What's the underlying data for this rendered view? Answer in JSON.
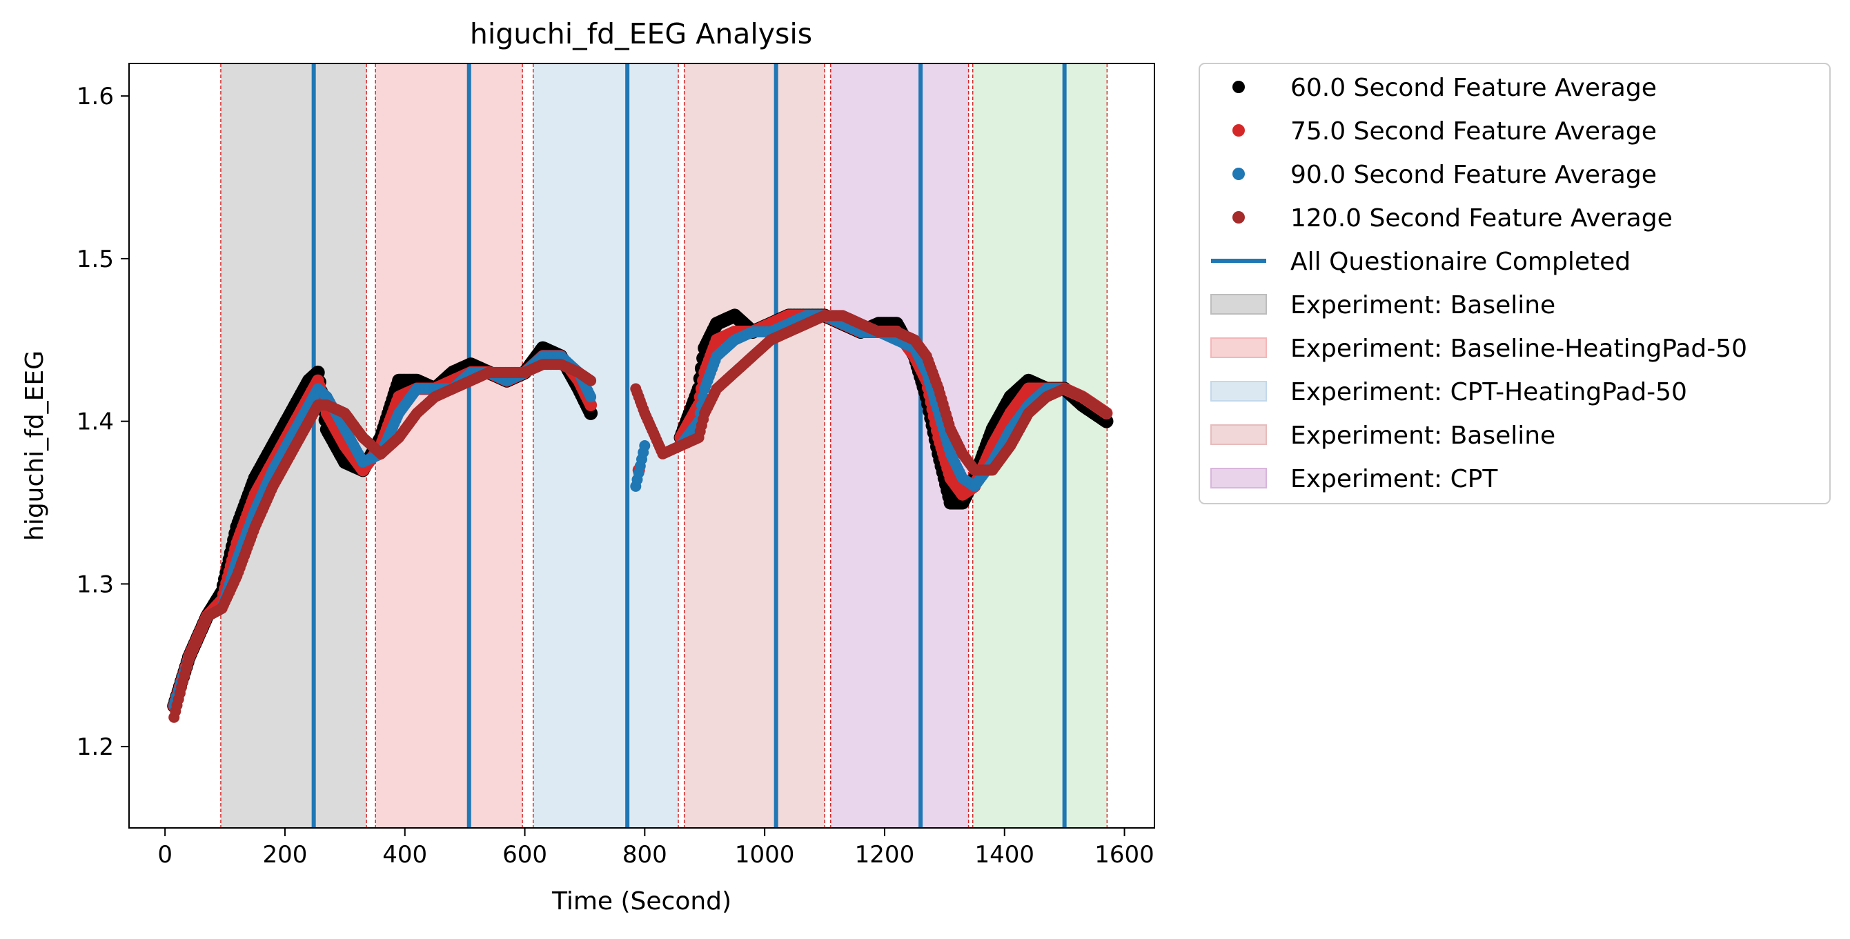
{
  "chart_data": {
    "type": "scatter",
    "title": "higuchi_fd_EEG Analysis",
    "xlabel": "Time (Second)",
    "ylabel": "higuchi_fd_EEG",
    "xlim": [
      -60,
      1650
    ],
    "ylim": [
      1.15,
      1.62
    ],
    "xticks": [
      0,
      200,
      400,
      600,
      800,
      1000,
      1200,
      1400,
      1600
    ],
    "yticks": [
      1.2,
      1.3,
      1.4,
      1.5,
      1.6
    ],
    "grid": false,
    "legend_position": "outside-right-top",
    "colors": {
      "s60": "#000000",
      "s75": "#d62728",
      "s90": "#1f77b4",
      "s120": "#a52a2a",
      "questionnaire": "#1f77b4",
      "boundary": "#d62728"
    },
    "series": [
      {
        "name": "60.0 Second Feature Average",
        "color": "#000000",
        "x": [
          15,
          40,
          70,
          95,
          120,
          150,
          180,
          210,
          240,
          255,
          270,
          300,
          330,
          360,
          390,
          420,
          450,
          480,
          510,
          540,
          570,
          600,
          630,
          660,
          690,
          710,
          860,
          890,
          900,
          920,
          950,
          980,
          1010,
          1040,
          1070,
          1100,
          1130,
          1160,
          1190,
          1220,
          1250,
          1270,
          1290,
          1310,
          1330,
          1350,
          1380,
          1410,
          1440,
          1470,
          1500,
          1530,
          1570
        ],
        "y": [
          1.225,
          1.255,
          1.28,
          1.295,
          1.335,
          1.365,
          1.385,
          1.405,
          1.425,
          1.43,
          1.395,
          1.375,
          1.37,
          1.39,
          1.425,
          1.425,
          1.42,
          1.43,
          1.435,
          1.43,
          1.425,
          1.43,
          1.445,
          1.44,
          1.42,
          1.405,
          1.39,
          1.42,
          1.445,
          1.46,
          1.465,
          1.455,
          1.46,
          1.465,
          1.465,
          1.465,
          1.46,
          1.455,
          1.46,
          1.46,
          1.44,
          1.415,
          1.38,
          1.35,
          1.35,
          1.365,
          1.395,
          1.415,
          1.425,
          1.42,
          1.42,
          1.41,
          1.4
        ]
      },
      {
        "name": "75.0 Second Feature Average",
        "color": "#d62728",
        "x": [
          15,
          40,
          70,
          95,
          120,
          150,
          180,
          210,
          240,
          255,
          270,
          300,
          330,
          360,
          390,
          420,
          450,
          480,
          510,
          540,
          570,
          600,
          630,
          660,
          690,
          710,
          790,
          860,
          890,
          900,
          920,
          950,
          980,
          1010,
          1040,
          1070,
          1100,
          1130,
          1160,
          1190,
          1220,
          1250,
          1270,
          1290,
          1310,
          1330,
          1350,
          1380,
          1410,
          1440,
          1470,
          1500,
          1530,
          1570
        ],
        "y": [
          1.225,
          1.255,
          1.28,
          1.29,
          1.325,
          1.355,
          1.375,
          1.395,
          1.415,
          1.425,
          1.405,
          1.385,
          1.37,
          1.385,
          1.415,
          1.42,
          1.42,
          1.425,
          1.43,
          1.43,
          1.425,
          1.43,
          1.44,
          1.44,
          1.425,
          1.41,
          1.37,
          1.39,
          1.41,
          1.43,
          1.45,
          1.455,
          1.455,
          1.46,
          1.465,
          1.465,
          1.465,
          1.46,
          1.455,
          1.455,
          1.455,
          1.44,
          1.425,
          1.39,
          1.365,
          1.355,
          1.36,
          1.385,
          1.405,
          1.42,
          1.42,
          1.42,
          1.415,
          1.405
        ]
      },
      {
        "name": "90.0 Second Feature Average",
        "color": "#1f77b4",
        "x": [
          15,
          40,
          70,
          95,
          120,
          150,
          180,
          210,
          240,
          255,
          270,
          300,
          330,
          360,
          390,
          420,
          450,
          480,
          510,
          540,
          570,
          600,
          630,
          660,
          690,
          710,
          785,
          800,
          860,
          890,
          900,
          920,
          950,
          980,
          1010,
          1040,
          1070,
          1100,
          1130,
          1160,
          1190,
          1220,
          1250,
          1270,
          1290,
          1310,
          1330,
          1350,
          1380,
          1410,
          1440,
          1470,
          1500,
          1530,
          1570
        ],
        "y": [
          1.225,
          1.255,
          1.28,
          1.285,
          1.315,
          1.345,
          1.37,
          1.39,
          1.41,
          1.42,
          1.415,
          1.395,
          1.375,
          1.38,
          1.405,
          1.42,
          1.42,
          1.42,
          1.43,
          1.43,
          1.425,
          1.43,
          1.44,
          1.44,
          1.43,
          1.415,
          1.36,
          1.385,
          1.385,
          1.4,
          1.42,
          1.44,
          1.45,
          1.455,
          1.455,
          1.46,
          1.465,
          1.465,
          1.46,
          1.455,
          1.455,
          1.45,
          1.445,
          1.43,
          1.405,
          1.38,
          1.365,
          1.36,
          1.375,
          1.395,
          1.41,
          1.42,
          1.42,
          1.415,
          1.405
        ]
      },
      {
        "name": "120.0 Second Feature Average",
        "color": "#a52a2a",
        "x": [
          15,
          40,
          70,
          95,
          120,
          150,
          180,
          210,
          240,
          255,
          270,
          300,
          330,
          360,
          390,
          420,
          450,
          480,
          510,
          540,
          570,
          600,
          630,
          660,
          690,
          710,
          785,
          800,
          830,
          860,
          890,
          900,
          920,
          950,
          980,
          1010,
          1040,
          1070,
          1100,
          1130,
          1160,
          1190,
          1220,
          1250,
          1270,
          1290,
          1310,
          1330,
          1350,
          1380,
          1410,
          1440,
          1470,
          1500,
          1530,
          1570
        ],
        "y": [
          1.218,
          1.255,
          1.28,
          1.285,
          1.305,
          1.335,
          1.36,
          1.38,
          1.4,
          1.41,
          1.41,
          1.405,
          1.39,
          1.38,
          1.39,
          1.405,
          1.415,
          1.42,
          1.425,
          1.43,
          1.43,
          1.43,
          1.435,
          1.435,
          1.43,
          1.425,
          1.42,
          1.405,
          1.38,
          1.385,
          1.39,
          1.405,
          1.42,
          1.43,
          1.44,
          1.45,
          1.455,
          1.46,
          1.465,
          1.465,
          1.46,
          1.455,
          1.455,
          1.45,
          1.44,
          1.42,
          1.395,
          1.38,
          1.37,
          1.37,
          1.385,
          1.405,
          1.415,
          1.42,
          1.415,
          1.405
        ]
      }
    ],
    "questionnaire": {
      "name": "All Questionaire Completed",
      "color": "#1f77b4",
      "x": [
        248,
        507,
        771,
        1019,
        1260,
        1500
      ]
    },
    "experiments": [
      {
        "label": "Experiment: Baseline",
        "color": "#bdbdbd",
        "start": 93,
        "end": 336
      },
      {
        "label": "Experiment: Baseline-HeatingPad-50",
        "color": "#f4b6b8",
        "start": 351,
        "end": 596
      },
      {
        "label": "Experiment: CPT-HeatingPad-50",
        "color": "#c3d8ea",
        "start": 614,
        "end": 856
      },
      {
        "label": "Experiment: Baseline",
        "color": "#e7bcbc",
        "start": 866,
        "end": 1100
      },
      {
        "label": "Experiment: CPT",
        "color": "#d8b5dc",
        "start": 1110,
        "end": 1340
      },
      {
        "label": "",
        "color": "#c4e6c4",
        "start": 1347,
        "end": 1571
      }
    ],
    "legend": [
      {
        "type": "marker",
        "color": "#000000",
        "label": "60.0 Second Feature Average"
      },
      {
        "type": "marker",
        "color": "#d62728",
        "label": "75.0 Second Feature Average"
      },
      {
        "type": "marker",
        "color": "#1f77b4",
        "label": "90.0 Second Feature Average"
      },
      {
        "type": "marker",
        "color": "#a52a2a",
        "label": "120.0 Second Feature Average"
      },
      {
        "type": "line",
        "color": "#1f77b4",
        "label": "All Questionaire Completed"
      },
      {
        "type": "patch",
        "color": "#bdbdbd",
        "label": "Experiment: Baseline"
      },
      {
        "type": "patch",
        "color": "#f4b6b8",
        "label": "Experiment: Baseline-HeatingPad-50"
      },
      {
        "type": "patch",
        "color": "#c3d8ea",
        "label": "Experiment: CPT-HeatingPad-50"
      },
      {
        "type": "patch",
        "color": "#e7bcbc",
        "label": "Experiment: Baseline"
      },
      {
        "type": "patch",
        "color": "#d8b5dc",
        "label": "Experiment: CPT"
      }
    ]
  }
}
